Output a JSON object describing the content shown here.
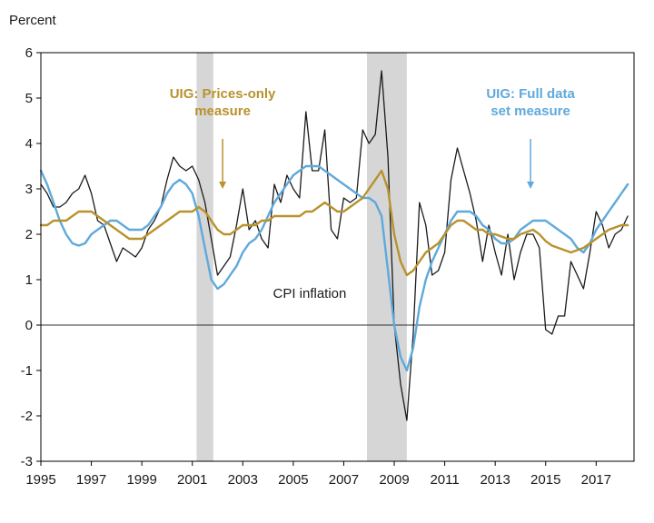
{
  "figure": {
    "ylabel": "Percent"
  },
  "chart_data": {
    "type": "line",
    "ylabel": "Percent",
    "xlim": [
      1995,
      2018.5
    ],
    "ylim": [
      -3,
      6
    ],
    "yticks": [
      -3,
      -2,
      -1,
      0,
      1,
      2,
      3,
      4,
      5,
      6
    ],
    "xticks": [
      1995,
      1997,
      1999,
      2001,
      2003,
      2005,
      2007,
      2009,
      2011,
      2013,
      2015,
      2017
    ],
    "zero_line": true,
    "grid": false,
    "band_color": "#d6d6d6",
    "x_start": 1995.0,
    "x_step": 0.25,
    "recession_bands": [
      {
        "from": 2001.17,
        "to": 2001.83
      },
      {
        "from": 2007.92,
        "to": 2009.5
      }
    ],
    "series": [
      {
        "id": "cpi-inflation",
        "name": "CPI inflation",
        "color": "#1a1a1a",
        "width": 1.3,
        "values": [
          3.1,
          2.9,
          2.6,
          2.6,
          2.7,
          2.9,
          3.0,
          3.3,
          2.9,
          2.3,
          2.2,
          1.8,
          1.4,
          1.7,
          1.6,
          1.5,
          1.7,
          2.1,
          2.3,
          2.6,
          3.2,
          3.7,
          3.5,
          3.4,
          3.5,
          3.2,
          2.7,
          1.9,
          1.1,
          1.3,
          1.5,
          2.2,
          3.0,
          2.1,
          2.3,
          1.9,
          1.7,
          3.1,
          2.7,
          3.3,
          3.0,
          2.8,
          4.7,
          3.4,
          3.4,
          4.3,
          2.1,
          1.9,
          2.8,
          2.7,
          2.8,
          4.3,
          4.0,
          4.2,
          5.6,
          3.7,
          0.0,
          -1.3,
          -2.1,
          -0.2,
          2.7,
          2.2,
          1.1,
          1.2,
          1.6,
          3.2,
          3.9,
          3.4,
          2.9,
          2.3,
          1.4,
          2.2,
          1.6,
          1.1,
          2.0,
          1.0,
          1.6,
          2.0,
          2.0,
          1.7,
          -0.1,
          -0.2,
          0.2,
          0.2,
          1.4,
          1.1,
          0.8,
          1.6,
          2.5,
          2.2,
          1.7,
          2.0,
          2.1,
          2.4
        ]
      },
      {
        "id": "uig-full-data",
        "name": "UIG: Full data set measure",
        "color": "#5fa9dc",
        "width": 2.4,
        "values": [
          3.4,
          3.1,
          2.7,
          2.3,
          2.0,
          1.8,
          1.75,
          1.8,
          2.0,
          2.1,
          2.2,
          2.3,
          2.3,
          2.2,
          2.1,
          2.1,
          2.1,
          2.2,
          2.4,
          2.6,
          2.9,
          3.1,
          3.2,
          3.1,
          2.9,
          2.4,
          1.7,
          1.0,
          0.8,
          0.9,
          1.1,
          1.3,
          1.6,
          1.8,
          1.9,
          2.1,
          2.4,
          2.7,
          2.9,
          3.1,
          3.3,
          3.4,
          3.5,
          3.5,
          3.5,
          3.4,
          3.3,
          3.2,
          3.1,
          3.0,
          2.9,
          2.8,
          2.8,
          2.7,
          2.4,
          1.2,
          0.0,
          -0.7,
          -1.0,
          -0.5,
          0.4,
          1.0,
          1.4,
          1.7,
          2.0,
          2.3,
          2.5,
          2.5,
          2.5,
          2.4,
          2.2,
          2.1,
          1.9,
          1.8,
          1.8,
          1.9,
          2.1,
          2.2,
          2.3,
          2.3,
          2.3,
          2.2,
          2.1,
          2.0,
          1.9,
          1.7,
          1.6,
          1.8,
          2.1,
          2.3,
          2.5,
          2.7,
          2.9,
          3.1
        ]
      },
      {
        "id": "uig-prices-only",
        "name": "UIG: Prices-only measure",
        "color": "#b8922d",
        "width": 2.4,
        "values": [
          2.2,
          2.2,
          2.3,
          2.3,
          2.3,
          2.4,
          2.5,
          2.5,
          2.5,
          2.4,
          2.3,
          2.2,
          2.1,
          2.0,
          1.9,
          1.9,
          1.9,
          2.0,
          2.1,
          2.2,
          2.3,
          2.4,
          2.5,
          2.5,
          2.5,
          2.6,
          2.5,
          2.3,
          2.1,
          2.0,
          2.0,
          2.1,
          2.2,
          2.2,
          2.2,
          2.3,
          2.3,
          2.4,
          2.4,
          2.4,
          2.4,
          2.4,
          2.5,
          2.5,
          2.6,
          2.7,
          2.6,
          2.5,
          2.5,
          2.6,
          2.7,
          2.8,
          3.0,
          3.2,
          3.4,
          3.0,
          2.0,
          1.4,
          1.1,
          1.2,
          1.4,
          1.6,
          1.7,
          1.8,
          2.0,
          2.2,
          2.3,
          2.3,
          2.2,
          2.1,
          2.1,
          2.0,
          2.0,
          1.95,
          1.9,
          1.9,
          2.0,
          2.05,
          2.1,
          2.0,
          1.85,
          1.75,
          1.7,
          1.65,
          1.6,
          1.65,
          1.7,
          1.8,
          1.9,
          2.0,
          2.1,
          2.15,
          2.2,
          2.2
        ]
      }
    ],
    "annotations": [
      {
        "id": "uig-prices-only-label",
        "lines": [
          "UIG: Prices-only",
          "measure"
        ],
        "color": "#b8922d",
        "bold": true,
        "x": 2002.2,
        "y": 5.0,
        "arrow": {
          "x": 2002.2,
          "from": 4.1,
          "to": 3.0
        }
      },
      {
        "id": "uig-full-data-label",
        "lines": [
          "UIG: Full data",
          "set measure"
        ],
        "color": "#5fa9dc",
        "bold": true,
        "x": 2014.4,
        "y": 5.0,
        "arrow": {
          "x": 2014.4,
          "from": 4.1,
          "to": 3.0
        }
      },
      {
        "id": "cpi-inflation-label",
        "lines": [
          "CPI inflation"
        ],
        "color": "#1a1a1a",
        "bold": false,
        "x": 2005.65,
        "y": 0.6,
        "arrow": null
      }
    ]
  }
}
